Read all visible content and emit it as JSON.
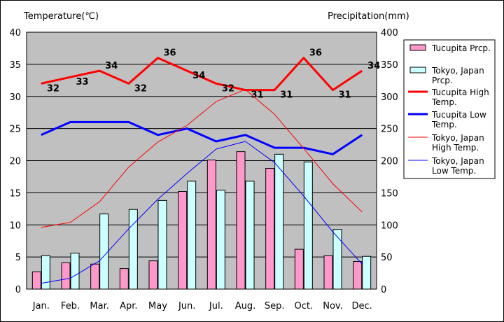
{
  "chart_data": {
    "type": "bar+line",
    "left_axis_label": "Temperature(℃)",
    "right_axis_label": "Precipitation(mm)",
    "left_ylim": [
      0,
      40
    ],
    "right_ylim": [
      0,
      400
    ],
    "left_ticks": [
      "0",
      "5",
      "10",
      "15",
      "20",
      "25",
      "30",
      "35",
      "40"
    ],
    "right_ticks": [
      "0",
      "50",
      "100",
      "150",
      "200",
      "250",
      "300",
      "350",
      "400"
    ],
    "categories": [
      "Jan.",
      "Feb.",
      "Mar.",
      "Apr.",
      "May",
      "Jun.",
      "Jul.",
      "Aug.",
      "Sep.",
      "Oct.",
      "Nov.",
      "Dec."
    ],
    "grid": true,
    "legend_position": "right",
    "series": [
      {
        "name": "Tucupita Prcp.",
        "kind": "bar",
        "axis": "right",
        "color": "#ff99cc",
        "values": [
          27,
          41,
          39,
          32,
          44,
          152,
          201,
          214,
          188,
          62,
          52,
          43
        ]
      },
      {
        "name": "Tokyo, Japan Prcp.",
        "kind": "bar",
        "axis": "right",
        "color": "#ccffff",
        "values": [
          52,
          56,
          117,
          124,
          138,
          168,
          154,
          168,
          210,
          198,
          93,
          51
        ]
      },
      {
        "name": "Tucupita High Temp.",
        "kind": "line",
        "axis": "left",
        "color": "#ff0000",
        "width": 3,
        "values": [
          32,
          33,
          34,
          32,
          36,
          34,
          32,
          31,
          31,
          36,
          31,
          34
        ],
        "labels": [
          "32",
          "33",
          "34",
          "32",
          "36",
          "34",
          "32",
          "31",
          "31",
          "36",
          "31",
          "34"
        ]
      },
      {
        "name": "Tucupita Low Temp.",
        "kind": "line",
        "axis": "left",
        "color": "#0000ff",
        "width": 3,
        "values": [
          24,
          26,
          26,
          26,
          24,
          25,
          23,
          24,
          22,
          22,
          21,
          24
        ]
      },
      {
        "name": "Tokyo, Japan High Temp.",
        "kind": "line",
        "axis": "left",
        "color": "#ff0000",
        "width": 1,
        "values": [
          9.6,
          10.4,
          13.6,
          19,
          22.9,
          25.5,
          29.2,
          31.1,
          27.2,
          21.9,
          16.4,
          12
        ]
      },
      {
        "name": "Tokyo, Japan Low Temp.",
        "kind": "line",
        "axis": "left",
        "color": "#0000ff",
        "width": 1,
        "values": [
          0.9,
          1.7,
          4.4,
          9.4,
          14,
          18,
          21.8,
          23,
          19.7,
          14.5,
          8.9,
          3.9
        ]
      }
    ],
    "legend": [
      {
        "series": "Tucupita Prcp.",
        "lines": [
          "Tucupita Prcp."
        ]
      },
      {
        "series": "Tokyo, Japan Prcp.",
        "lines": [
          "Tokyo, Japan",
          "Prcp."
        ]
      },
      {
        "series": "Tucupita High Temp.",
        "lines": [
          "Tucupita High",
          "Temp."
        ]
      },
      {
        "series": "Tucupita Low Temp.",
        "lines": [
          "Tucupita Low",
          "Temp."
        ]
      },
      {
        "series": "Tokyo, Japan High Temp.",
        "lines": [
          "Tokyo, Japan",
          "High Temp."
        ]
      },
      {
        "series": "Tokyo, Japan Low Temp.",
        "lines": [
          "Tokyo, Japan",
          "Low Temp."
        ]
      }
    ]
  }
}
